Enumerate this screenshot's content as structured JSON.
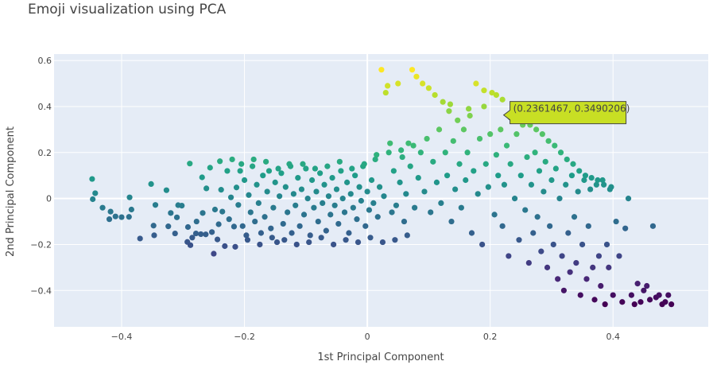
{
  "chart_data": {
    "type": "scatter",
    "title": "Emoji visualization using PCA",
    "xlabel": "1st Principal Component",
    "ylabel": "2nd Principal Component",
    "xlim": [
      -0.51,
      0.555
    ],
    "ylim": [
      -0.558,
      0.628
    ],
    "xticks": [
      -0.4,
      -0.2,
      0,
      0.2,
      0.4
    ],
    "xtick_labels": [
      "−0.4",
      "−0.2",
      "0",
      "0.2",
      "0.4"
    ],
    "yticks": [
      -0.4,
      -0.2,
      0,
      0.2,
      0.4,
      0.6
    ],
    "ytick_labels": [
      "−0.4",
      "−0.2",
      "0",
      "0.2",
      "0.4",
      "0.6"
    ],
    "grid": true,
    "colorscale": "viridis",
    "color_by": "y",
    "series": [
      {
        "marker": "circle",
        "points": [
          [
            -0.447,
            -0.003
          ],
          [
            -0.448,
            0.085
          ],
          [
            -0.443,
            0.023
          ],
          [
            -0.431,
            -0.04
          ],
          [
            -0.42,
            -0.09
          ],
          [
            -0.418,
            -0.057
          ],
          [
            -0.41,
            -0.078
          ],
          [
            -0.4,
            -0.081
          ],
          [
            -0.388,
            -0.08
          ],
          [
            -0.387,
            0.005
          ],
          [
            -0.384,
            -0.048
          ],
          [
            -0.37,
            -0.174
          ],
          [
            -0.352,
            0.063
          ],
          [
            -0.348,
            -0.118
          ],
          [
            -0.347,
            -0.16
          ],
          [
            -0.345,
            -0.028
          ],
          [
            -0.327,
            0.036
          ],
          [
            -0.324,
            -0.121
          ],
          [
            -0.32,
            -0.063
          ],
          [
            -0.313,
            -0.152
          ],
          [
            -0.31,
            -0.082
          ],
          [
            -0.308,
            -0.029
          ],
          [
            -0.302,
            -0.031
          ],
          [
            -0.293,
            -0.189
          ],
          [
            -0.292,
            -0.124
          ],
          [
            -0.289,
            0.152
          ],
          [
            -0.288,
            -0.203
          ],
          [
            -0.285,
            -0.17
          ],
          [
            -0.279,
            -0.152
          ],
          [
            -0.278,
            -0.1
          ],
          [
            -0.271,
            -0.155
          ],
          [
            -0.269,
            0.092
          ],
          [
            -0.268,
            -0.063
          ],
          [
            -0.263,
            -0.156
          ],
          [
            -0.262,
            0.044
          ],
          [
            -0.256,
            0.134
          ],
          [
            -0.253,
            -0.146
          ],
          [
            -0.25,
            -0.24
          ],
          [
            -0.248,
            -0.048
          ],
          [
            -0.244,
            -0.178
          ],
          [
            -0.242,
            -0.112
          ],
          [
            -0.24,
            0.162
          ],
          [
            -0.238,
            0.038
          ],
          [
            -0.236,
            -0.057
          ],
          [
            -0.232,
            -0.207
          ],
          [
            -0.228,
            0.12
          ],
          [
            -0.225,
            -0.09
          ],
          [
            -0.222,
            0.005
          ],
          [
            -0.22,
            0.17
          ],
          [
            -0.217,
            -0.122
          ],
          [
            -0.213,
            0.048
          ],
          [
            -0.21,
            -0.028
          ],
          [
            -0.207,
            0.12
          ],
          [
            -0.203,
            -0.12
          ],
          [
            -0.2,
            0.08
          ],
          [
            -0.197,
            -0.16
          ],
          [
            -0.193,
            0.015
          ],
          [
            -0.19,
            -0.06
          ],
          [
            -0.187,
            0.14
          ],
          [
            -0.183,
            -0.1
          ],
          [
            -0.18,
            0.06
          ],
          [
            -0.177,
            -0.02
          ],
          [
            -0.173,
            -0.15
          ],
          [
            -0.17,
            0.1
          ],
          [
            -0.167,
            -0.08
          ],
          [
            -0.163,
            0.03
          ],
          [
            -0.16,
            0.12
          ],
          [
            -0.157,
            -0.13
          ],
          [
            -0.153,
            -0.04
          ],
          [
            -0.15,
            0.07
          ],
          [
            -0.147,
            -0.19
          ],
          [
            -0.143,
            0.01
          ],
          [
            -0.14,
            0.11
          ],
          [
            -0.137,
            -0.11
          ],
          [
            -0.133,
            0.05
          ],
          [
            -0.13,
            -0.06
          ],
          [
            -0.127,
            0.15
          ],
          [
            -0.123,
            -0.15
          ],
          [
            -0.12,
            0.02
          ],
          [
            -0.117,
            -0.03
          ],
          [
            -0.113,
            0.09
          ],
          [
            -0.11,
            -0.12
          ],
          [
            -0.107,
            0.04
          ],
          [
            -0.103,
            -0.07
          ],
          [
            -0.1,
            0.13
          ],
          [
            -0.097,
            0.0
          ],
          [
            -0.093,
            -0.16
          ],
          [
            -0.09,
            0.08
          ],
          [
            -0.087,
            -0.04
          ],
          [
            -0.083,
            0.03
          ],
          [
            -0.08,
            -0.1
          ],
          [
            -0.077,
            0.11
          ],
          [
            -0.073,
            -0.02
          ],
          [
            -0.07,
            0.06
          ],
          [
            -0.067,
            -0.14
          ],
          [
            -0.063,
            0.01
          ],
          [
            -0.06,
            -0.07
          ],
          [
            -0.057,
            0.09
          ],
          [
            -0.053,
            -0.03
          ],
          [
            -0.05,
            0.04
          ],
          [
            -0.047,
            -0.11
          ],
          [
            -0.043,
            0.12
          ],
          [
            -0.04,
            0.0
          ],
          [
            -0.037,
            -0.06
          ],
          [
            -0.033,
            0.07
          ],
          [
            -0.03,
            -0.15
          ],
          [
            -0.027,
            0.02
          ],
          [
            -0.023,
            -0.04
          ],
          [
            -0.02,
            0.1
          ],
          [
            -0.017,
            -0.09
          ],
          [
            -0.013,
            0.05
          ],
          [
            -0.01,
            -0.01
          ],
          [
            -0.007,
            0.14
          ],
          [
            -0.003,
            -0.12
          ],
          [
            0.0,
            0.03
          ],
          [
            0.003,
            -0.05
          ],
          [
            0.007,
            0.08
          ],
          [
            0.01,
            -0.02
          ],
          [
            0.013,
            0.17
          ],
          [
            0.017,
            -0.08
          ],
          [
            0.02,
            0.05
          ],
          [
            0.023,
            0.56
          ],
          [
            0.027,
            0.01
          ],
          [
            0.03,
            0.46
          ],
          [
            0.033,
            0.49
          ],
          [
            0.037,
            0.24
          ],
          [
            0.04,
            -0.06
          ],
          [
            0.043,
            0.12
          ],
          [
            0.047,
            -0.03
          ],
          [
            0.05,
            0.5
          ],
          [
            0.053,
            0.07
          ],
          [
            0.057,
            0.18
          ],
          [
            0.06,
            -0.1
          ],
          [
            0.063,
            0.02
          ],
          [
            0.067,
            0.24
          ],
          [
            0.07,
            0.14
          ],
          [
            0.073,
            0.56
          ],
          [
            0.077,
            -0.04
          ],
          [
            0.08,
            0.53
          ],
          [
            0.083,
            0.09
          ],
          [
            0.087,
            0.2
          ],
          [
            0.09,
            0.5
          ],
          [
            0.093,
            0.03
          ],
          [
            0.097,
            0.26
          ],
          [
            0.1,
            0.48
          ],
          [
            0.103,
            -0.06
          ],
          [
            0.107,
            0.16
          ],
          [
            0.11,
            0.45
          ],
          [
            0.113,
            0.07
          ],
          [
            0.117,
            0.3
          ],
          [
            0.12,
            -0.02
          ],
          [
            0.123,
            0.42
          ],
          [
            0.127,
            0.2
          ],
          [
            0.13,
            0.1
          ],
          [
            0.133,
            0.38
          ],
          [
            0.137,
            -0.1
          ],
          [
            0.14,
            0.25
          ],
          [
            0.143,
            0.04
          ],
          [
            0.147,
            0.34
          ],
          [
            0.15,
            0.15
          ],
          [
            0.153,
            -0.04
          ],
          [
            0.157,
            0.3
          ],
          [
            0.16,
            0.08
          ],
          [
            0.163,
            0.2
          ],
          [
            0.167,
            0.36
          ],
          [
            0.17,
            -0.15
          ],
          [
            0.173,
            0.12
          ],
          [
            0.177,
            0.5
          ],
          [
            0.18,
            0.02
          ],
          [
            0.183,
            0.26
          ],
          [
            0.187,
            -0.2
          ],
          [
            0.19,
            0.4
          ],
          [
            0.193,
            0.15
          ],
          [
            0.197,
            0.05
          ],
          [
            0.2,
            0.28
          ],
          [
            0.203,
            0.46
          ],
          [
            0.207,
            -0.07
          ],
          [
            0.21,
            0.19
          ],
          [
            0.213,
            0.1
          ],
          [
            0.217,
            0.3
          ],
          [
            0.22,
            -0.12
          ],
          [
            0.223,
            0.06
          ],
          [
            0.227,
            0.23
          ],
          [
            0.23,
            -0.25
          ],
          [
            0.233,
            0.15
          ],
          [
            0.236,
            0.349
          ],
          [
            0.24,
            0.0
          ],
          [
            0.243,
            0.28
          ],
          [
            0.247,
            -0.18
          ],
          [
            0.25,
            0.1
          ],
          [
            0.253,
            0.32
          ],
          [
            0.257,
            -0.05
          ],
          [
            0.26,
            0.18
          ],
          [
            0.263,
            -0.28
          ],
          [
            0.267,
            0.06
          ],
          [
            0.27,
            -0.15
          ],
          [
            0.273,
            0.2
          ],
          [
            0.277,
            -0.08
          ],
          [
            0.28,
            0.12
          ],
          [
            0.283,
            -0.23
          ],
          [
            0.287,
            0.03
          ],
          [
            0.29,
            0.16
          ],
          [
            0.293,
            -0.3
          ],
          [
            0.297,
            -0.12
          ],
          [
            0.3,
            0.08
          ],
          [
            0.303,
            -0.2
          ],
          [
            0.307,
            0.13
          ],
          [
            0.31,
            -0.35
          ],
          [
            0.313,
            0.0
          ],
          [
            0.317,
            -0.25
          ],
          [
            0.32,
            -0.4
          ],
          [
            0.323,
            0.06
          ],
          [
            0.327,
            -0.15
          ],
          [
            0.33,
            -0.32
          ],
          [
            0.333,
            0.1
          ],
          [
            0.337,
            -0.08
          ],
          [
            0.34,
            -0.28
          ],
          [
            0.343,
            0.03
          ],
          [
            0.347,
            -0.42
          ],
          [
            0.35,
            -0.2
          ],
          [
            0.353,
            0.08
          ],
          [
            0.357,
            -0.35
          ],
          [
            0.36,
            -0.12
          ],
          [
            0.363,
            0.04
          ],
          [
            0.367,
            -0.3
          ],
          [
            0.37,
            -0.44
          ],
          [
            0.373,
            0.06
          ],
          [
            0.377,
            -0.25
          ],
          [
            0.38,
            -0.38
          ],
          [
            0.383,
            0.08
          ],
          [
            0.387,
            -0.46
          ],
          [
            0.39,
            -0.2
          ],
          [
            0.393,
            -0.3
          ],
          [
            0.397,
            0.05
          ],
          [
            0.4,
            -0.42
          ],
          [
            0.405,
            -0.1
          ],
          [
            0.41,
            -0.25
          ],
          [
            0.415,
            -0.45
          ],
          [
            0.42,
            -0.13
          ],
          [
            0.425,
            0.0
          ],
          [
            0.43,
            -0.42
          ],
          [
            0.435,
            -0.46
          ],
          [
            0.44,
            -0.37
          ],
          [
            0.445,
            -0.45
          ],
          [
            0.45,
            -0.4
          ],
          [
            0.455,
            -0.38
          ],
          [
            0.46,
            -0.44
          ],
          [
            0.465,
            -0.12
          ],
          [
            0.47,
            -0.43
          ],
          [
            0.475,
            -0.42
          ],
          [
            0.48,
            -0.46
          ],
          [
            0.485,
            -0.45
          ],
          [
            0.49,
            -0.42
          ],
          [
            0.495,
            -0.46
          ],
          [
            0.21,
            0.45
          ],
          [
            0.22,
            0.43
          ],
          [
            0.19,
            0.47
          ],
          [
            0.135,
            0.41
          ],
          [
            0.165,
            0.39
          ],
          [
            0.245,
            0.37
          ],
          [
            0.255,
            0.34
          ],
          [
            0.265,
            0.32
          ],
          [
            0.275,
            0.3
          ],
          [
            0.285,
            0.28
          ],
          [
            0.295,
            0.25
          ],
          [
            0.305,
            0.23
          ],
          [
            0.315,
            0.2
          ],
          [
            0.325,
            0.17
          ],
          [
            0.335,
            0.15
          ],
          [
            0.345,
            0.12
          ],
          [
            0.355,
            0.1
          ],
          [
            0.365,
            0.09
          ],
          [
            0.375,
            0.08
          ],
          [
            0.385,
            0.06
          ],
          [
            0.395,
            0.04
          ],
          [
            -0.215,
            -0.21
          ],
          [
            -0.195,
            -0.18
          ],
          [
            -0.175,
            -0.2
          ],
          [
            -0.155,
            -0.17
          ],
          [
            -0.135,
            -0.18
          ],
          [
            -0.115,
            -0.2
          ],
          [
            -0.095,
            -0.19
          ],
          [
            -0.075,
            -0.17
          ],
          [
            -0.055,
            -0.2
          ],
          [
            -0.035,
            -0.18
          ],
          [
            -0.015,
            -0.19
          ],
          [
            0.005,
            -0.17
          ],
          [
            0.025,
            -0.19
          ],
          [
            0.045,
            -0.18
          ],
          [
            0.065,
            -0.16
          ],
          [
            -0.205,
            0.15
          ],
          [
            -0.185,
            0.17
          ],
          [
            -0.165,
            0.16
          ],
          [
            -0.145,
            0.13
          ],
          [
            -0.125,
            0.14
          ],
          [
            -0.105,
            0.15
          ],
          [
            -0.085,
            0.13
          ],
          [
            -0.065,
            0.14
          ],
          [
            -0.045,
            0.16
          ],
          [
            -0.025,
            0.13
          ],
          [
            -0.005,
            0.15
          ],
          [
            0.015,
            0.19
          ],
          [
            0.035,
            0.2
          ],
          [
            0.055,
            0.21
          ],
          [
            0.075,
            0.23
          ]
        ]
      }
    ]
  },
  "hover": {
    "label": "(0.2361467, 0.3490206)",
    "color": "#c8df24"
  },
  "colors": {
    "plot_bg": "#e5ecf6",
    "grid": "#ffffff",
    "text": "#444444",
    "marker_watermelon": "#e94545"
  }
}
